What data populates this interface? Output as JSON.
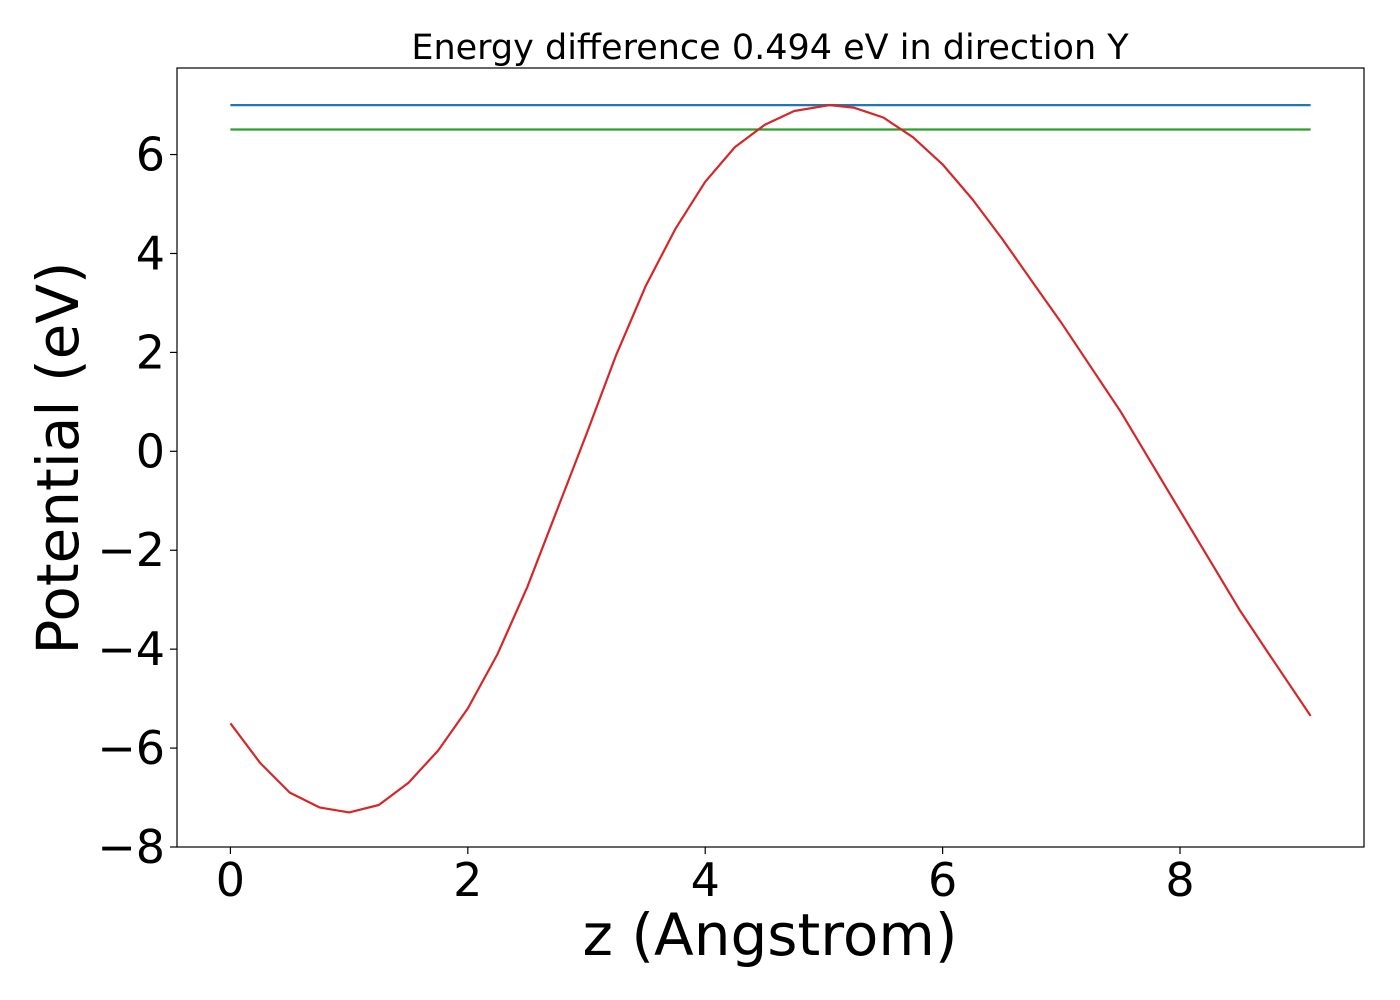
{
  "chart_data": {
    "type": "line",
    "title": "Energy difference 0.494 eV in direction Y",
    "xlabel": "z (Angstrom)",
    "ylabel": "Potential (eV)",
    "xlim": [
      -0.45,
      9.55
    ],
    "ylim": [
      -8,
      7.75
    ],
    "xticks": [
      0,
      2,
      4,
      6,
      8
    ],
    "xtick_labels": [
      "0",
      "2",
      "4",
      "6",
      "8"
    ],
    "yticks": [
      -8,
      -6,
      -4,
      -2,
      0,
      2,
      4,
      6
    ],
    "ytick_labels": [
      "−8",
      "−6",
      "−4",
      "−2",
      "0",
      "2",
      "4",
      "6"
    ],
    "grid": false,
    "legend": "none",
    "series": [
      {
        "color": "#1f77b4",
        "x": [
          0,
          9.1
        ],
        "y": [
          7.0,
          7.0
        ]
      },
      {
        "color": "#2ca02c",
        "x": [
          0,
          9.1
        ],
        "y": [
          6.506,
          6.506
        ]
      },
      {
        "color": "#d62728",
        "x": [
          0,
          0.25,
          0.5,
          0.75,
          1.0,
          1.25,
          1.5,
          1.75,
          2.0,
          2.25,
          2.5,
          2.75,
          3.0,
          3.25,
          3.5,
          3.75,
          4.0,
          4.25,
          4.5,
          4.75,
          5.05,
          5.25,
          5.5,
          5.75,
          6.0,
          6.25,
          6.5,
          6.75,
          7.0,
          7.25,
          7.5,
          7.75,
          8.0,
          8.25,
          8.5,
          8.75,
          9.1
        ],
        "y": [
          -5.5,
          -6.3,
          -6.9,
          -7.2,
          -7.3,
          -7.15,
          -6.7,
          -6.05,
          -5.2,
          -4.1,
          -2.75,
          -1.2,
          0.35,
          1.95,
          3.35,
          4.5,
          5.45,
          6.15,
          6.6,
          6.88,
          7.0,
          6.95,
          6.75,
          6.35,
          5.8,
          5.1,
          4.3,
          3.45,
          2.6,
          1.7,
          0.8,
          -0.2,
          -1.2,
          -2.2,
          -3.2,
          -4.1,
          -5.35
        ]
      }
    ]
  }
}
